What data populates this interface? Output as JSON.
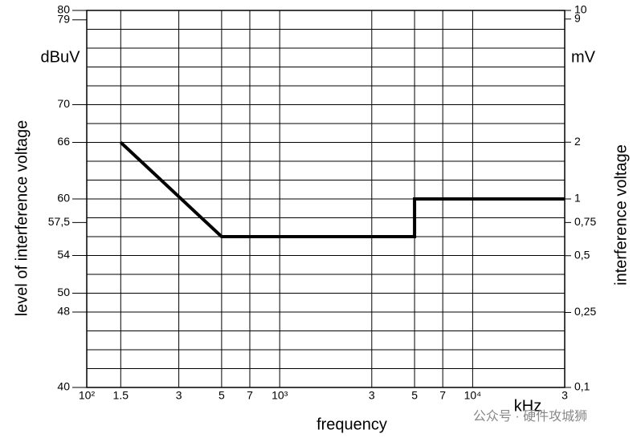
{
  "chart_data": {
    "type": "line",
    "x_label": "frequency",
    "x_unit": "kHz",
    "y_label": "level of interference voltage",
    "y_unit": "dBuV",
    "y2_label": "interference voltage",
    "y2_unit": "mV",
    "x": [
      150,
      500,
      5000,
      5000,
      30000
    ],
    "series": [
      {
        "color": "#000000",
        "values": [
          66,
          56,
          56,
          60,
          60
        ]
      }
    ],
    "x_scale": "log",
    "xlim": [
      100,
      30000
    ],
    "xticks": [
      {
        "value": 100,
        "label": "10²"
      },
      {
        "value": 150,
        "label": "1.5"
      },
      {
        "value": 300,
        "label": "3"
      },
      {
        "value": 500,
        "label": "5"
      },
      {
        "value": 700,
        "label": "7"
      },
      {
        "value": 1000,
        "label": "10³"
      },
      {
        "value": 3000,
        "label": "3"
      },
      {
        "value": 5000,
        "label": "5"
      },
      {
        "value": 7000,
        "label": "7"
      },
      {
        "value": 10000,
        "label": "10⁴"
      },
      {
        "value": 30000,
        "label": "3"
      }
    ],
    "ylim": [
      40,
      80
    ],
    "yticks": [
      40,
      48,
      50,
      54,
      {
        "value": 57.5,
        "label": "57,5"
      },
      60,
      66,
      70,
      79,
      80
    ],
    "y2_scale": "log",
    "y2lim": [
      0.1,
      10
    ],
    "y2ticks": [
      {
        "value": 0.1,
        "label": "0,1"
      },
      {
        "value": 0.25,
        "label": "0,25"
      },
      {
        "value": 0.5,
        "label": "0,5"
      },
      {
        "value": 0.75,
        "label": "0,75"
      },
      1,
      2,
      9,
      10
    ],
    "grid": true,
    "grid_step": 2
  },
  "watermark": "公众号 · 硬件攻城狮"
}
